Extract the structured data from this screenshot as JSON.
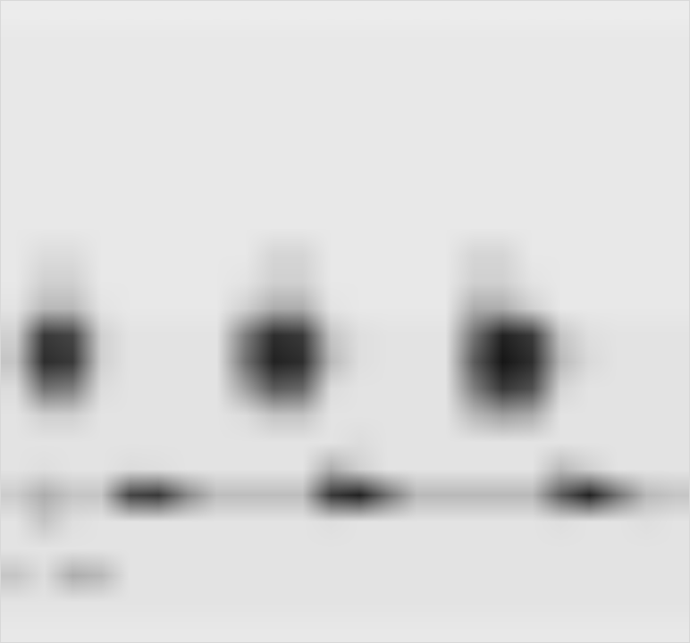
{
  "chart_data": {
    "type": "heatmap",
    "x": [
      0,
      1,
      2,
      3,
      4,
      5,
      6,
      7,
      8,
      9,
      10,
      11,
      12,
      13,
      14,
      15,
      16,
      17,
      18,
      19,
      20,
      21,
      22,
      23
    ],
    "y": [
      0,
      1,
      2,
      3,
      4,
      5,
      6,
      7,
      8,
      9,
      10,
      11,
      12,
      13,
      14,
      15,
      16,
      17,
      18,
      19,
      20,
      21,
      22,
      23
    ],
    "xlim": [
      -0.5,
      23.5
    ],
    "ylim": [
      23.5,
      -0.5
    ],
    "zlim": [
      0,
      1
    ],
    "tick_labels": false,
    "grid": false,
    "cells": [
      [
        0.08,
        0.08,
        0.08,
        0.08,
        0.08,
        0.08,
        0.08,
        0.08,
        0.08,
        0.08,
        0.08,
        0.08,
        0.08,
        0.08,
        0.08,
        0.08,
        0.08,
        0.08,
        0.08,
        0.08,
        0.08,
        0.08,
        0.08,
        0.08
      ],
      [
        0.1,
        0.1,
        0.1,
        0.1,
        0.1,
        0.1,
        0.1,
        0.1,
        0.1,
        0.1,
        0.1,
        0.1,
        0.1,
        0.1,
        0.1,
        0.1,
        0.1,
        0.1,
        0.1,
        0.1,
        0.1,
        0.1,
        0.1,
        0.1
      ],
      [
        0.1,
        0.1,
        0.1,
        0.1,
        0.1,
        0.1,
        0.1,
        0.1,
        0.1,
        0.1,
        0.1,
        0.1,
        0.1,
        0.1,
        0.1,
        0.1,
        0.1,
        0.1,
        0.1,
        0.1,
        0.1,
        0.1,
        0.1,
        0.1
      ],
      [
        0.1,
        0.1,
        0.1,
        0.1,
        0.1,
        0.1,
        0.1,
        0.1,
        0.1,
        0.1,
        0.1,
        0.1,
        0.1,
        0.1,
        0.1,
        0.1,
        0.1,
        0.1,
        0.1,
        0.1,
        0.1,
        0.1,
        0.1,
        0.1
      ],
      [
        0.1,
        0.1,
        0.1,
        0.1,
        0.1,
        0.1,
        0.1,
        0.1,
        0.1,
        0.1,
        0.1,
        0.1,
        0.1,
        0.1,
        0.1,
        0.1,
        0.1,
        0.1,
        0.1,
        0.1,
        0.1,
        0.1,
        0.1,
        0.1
      ],
      [
        0.1,
        0.1,
        0.1,
        0.1,
        0.1,
        0.1,
        0.1,
        0.1,
        0.1,
        0.1,
        0.1,
        0.1,
        0.1,
        0.1,
        0.1,
        0.1,
        0.1,
        0.1,
        0.1,
        0.1,
        0.1,
        0.1,
        0.1,
        0.1
      ],
      [
        0.1,
        0.1,
        0.1,
        0.1,
        0.1,
        0.1,
        0.1,
        0.1,
        0.1,
        0.1,
        0.1,
        0.1,
        0.1,
        0.1,
        0.1,
        0.1,
        0.1,
        0.1,
        0.1,
        0.1,
        0.1,
        0.1,
        0.1,
        0.1
      ],
      [
        0.1,
        0.1,
        0.1,
        0.1,
        0.1,
        0.1,
        0.1,
        0.1,
        0.1,
        0.1,
        0.1,
        0.1,
        0.1,
        0.1,
        0.1,
        0.1,
        0.1,
        0.1,
        0.1,
        0.1,
        0.1,
        0.1,
        0.1,
        0.1
      ],
      [
        0.1,
        0.1,
        0.1,
        0.1,
        0.1,
        0.1,
        0.1,
        0.1,
        0.1,
        0.1,
        0.1,
        0.1,
        0.1,
        0.1,
        0.1,
        0.1,
        0.1,
        0.1,
        0.1,
        0.1,
        0.1,
        0.1,
        0.1,
        0.1
      ],
      [
        0.1,
        0.15,
        0.15,
        0.1,
        0.1,
        0.1,
        0.1,
        0.1,
        0.1,
        0.18,
        0.18,
        0.1,
        0.1,
        0.1,
        0.1,
        0.1,
        0.18,
        0.18,
        0.1,
        0.1,
        0.1,
        0.1,
        0.1,
        0.1
      ],
      [
        0.1,
        0.2,
        0.2,
        0.1,
        0.1,
        0.1,
        0.1,
        0.1,
        0.12,
        0.2,
        0.2,
        0.1,
        0.1,
        0.1,
        0.1,
        0.1,
        0.2,
        0.2,
        0.12,
        0.1,
        0.1,
        0.1,
        0.1,
        0.1
      ],
      [
        0.12,
        0.3,
        0.3,
        0.12,
        0.1,
        0.1,
        0.1,
        0.1,
        0.2,
        0.35,
        0.35,
        0.12,
        0.1,
        0.1,
        0.1,
        0.1,
        0.35,
        0.35,
        0.2,
        0.1,
        0.1,
        0.1,
        0.1,
        0.1
      ],
      [
        0.2,
        0.85,
        0.8,
        0.2,
        0.12,
        0.12,
        0.12,
        0.12,
        0.55,
        0.9,
        0.85,
        0.25,
        0.14,
        0.12,
        0.12,
        0.12,
        0.6,
        0.95,
        0.85,
        0.25,
        0.14,
        0.12,
        0.12,
        0.12
      ],
      [
        0.25,
        0.9,
        0.85,
        0.2,
        0.12,
        0.12,
        0.12,
        0.12,
        0.6,
        0.95,
        0.9,
        0.3,
        0.14,
        0.12,
        0.12,
        0.12,
        0.7,
        1.0,
        0.9,
        0.3,
        0.16,
        0.12,
        0.12,
        0.12
      ],
      [
        0.15,
        0.6,
        0.55,
        0.15,
        0.12,
        0.12,
        0.12,
        0.12,
        0.4,
        0.7,
        0.65,
        0.15,
        0.12,
        0.12,
        0.12,
        0.12,
        0.55,
        0.85,
        0.75,
        0.18,
        0.12,
        0.12,
        0.12,
        0.12
      ],
      [
        0.12,
        0.2,
        0.2,
        0.12,
        0.12,
        0.12,
        0.12,
        0.12,
        0.15,
        0.25,
        0.25,
        0.12,
        0.12,
        0.12,
        0.12,
        0.12,
        0.3,
        0.4,
        0.35,
        0.12,
        0.12,
        0.12,
        0.12,
        0.12
      ],
      [
        0.12,
        0.12,
        0.12,
        0.12,
        0.12,
        0.12,
        0.12,
        0.12,
        0.12,
        0.12,
        0.12,
        0.12,
        0.15,
        0.12,
        0.12,
        0.12,
        0.12,
        0.12,
        0.12,
        0.12,
        0.12,
        0.12,
        0.12,
        0.12
      ],
      [
        0.12,
        0.14,
        0.12,
        0.12,
        0.15,
        0.14,
        0.12,
        0.12,
        0.12,
        0.12,
        0.12,
        0.35,
        0.2,
        0.12,
        0.12,
        0.12,
        0.12,
        0.12,
        0.12,
        0.3,
        0.2,
        0.12,
        0.12,
        0.12
      ],
      [
        0.22,
        0.35,
        0.25,
        0.25,
        0.8,
        0.85,
        0.5,
        0.28,
        0.28,
        0.28,
        0.28,
        0.85,
        0.95,
        0.6,
        0.3,
        0.3,
        0.3,
        0.3,
        0.3,
        0.7,
        0.95,
        0.6,
        0.3,
        0.25
      ],
      [
        0.12,
        0.25,
        0.14,
        0.12,
        0.12,
        0.12,
        0.12,
        0.12,
        0.12,
        0.12,
        0.12,
        0.14,
        0.12,
        0.12,
        0.12,
        0.12,
        0.12,
        0.12,
        0.12,
        0.14,
        0.12,
        0.12,
        0.14,
        0.12
      ],
      [
        0.12,
        0.12,
        0.12,
        0.12,
        0.12,
        0.12,
        0.12,
        0.12,
        0.12,
        0.12,
        0.12,
        0.12,
        0.12,
        0.12,
        0.12,
        0.12,
        0.12,
        0.12,
        0.12,
        0.12,
        0.12,
        0.12,
        0.12,
        0.12
      ],
      [
        0.25,
        0.15,
        0.35,
        0.3,
        0.12,
        0.12,
        0.12,
        0.12,
        0.12,
        0.12,
        0.12,
        0.12,
        0.12,
        0.12,
        0.12,
        0.12,
        0.12,
        0.12,
        0.12,
        0.12,
        0.12,
        0.12,
        0.12,
        0.12
      ],
      [
        0.12,
        0.12,
        0.12,
        0.12,
        0.12,
        0.12,
        0.12,
        0.12,
        0.12,
        0.12,
        0.12,
        0.12,
        0.12,
        0.12,
        0.12,
        0.12,
        0.12,
        0.12,
        0.12,
        0.12,
        0.12,
        0.12,
        0.12,
        0.12
      ],
      [
        0.1,
        0.1,
        0.1,
        0.1,
        0.1,
        0.1,
        0.1,
        0.1,
        0.1,
        0.1,
        0.1,
        0.1,
        0.1,
        0.1,
        0.1,
        0.1,
        0.1,
        0.1,
        0.1,
        0.1,
        0.1,
        0.1,
        0.1,
        0.1
      ]
    ]
  }
}
